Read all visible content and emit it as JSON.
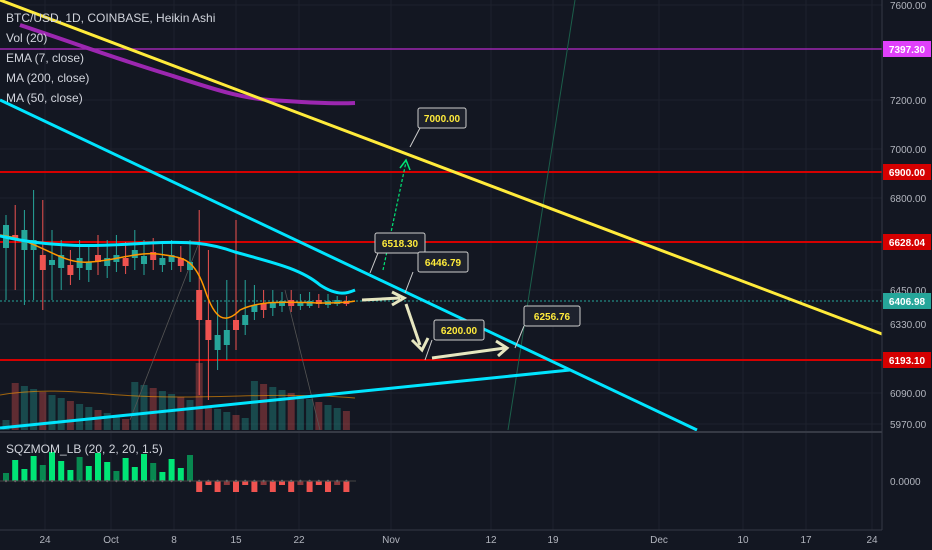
{
  "legend": {
    "symbol": "BTC/USD, 1D, COINBASE, Heikin Ashi",
    "vol": "Vol (20)",
    "ema": "EMA (7, close)",
    "ma200": "MA (200, close)",
    "ma50": "MA (50, close)"
  },
  "oscillator": {
    "label": "SQZMOM_LB (20, 2, 20, 1.5)",
    "zero_label": "0.0000"
  },
  "price_axis": [
    "7600.00",
    "7200.00",
    "7000.00",
    "6800.00",
    "6450.00",
    "6330.00",
    "6090.00",
    "5970.00"
  ],
  "price_tags": [
    {
      "text": "7397.30",
      "color": "#e040fb"
    },
    {
      "text": "6900.00",
      "color": "#d50000"
    },
    {
      "text": "6628.04",
      "color": "#d50000"
    },
    {
      "text": "6406.98",
      "color": "#26a69a"
    },
    {
      "text": "6193.10",
      "color": "#d50000"
    }
  ],
  "time_axis": [
    "24",
    "Oct",
    "8",
    "15",
    "22",
    "Nov",
    "12",
    "19",
    "Dec",
    "10",
    "17",
    "24"
  ],
  "annotations": [
    "7000.00",
    "6518.30",
    "6446.79",
    "6200.00",
    "6256.76"
  ],
  "colors": {
    "background": "#131722",
    "up": "#26a69a",
    "down": "#ef5350",
    "resistance": "#d50000",
    "yellow_trend": "#ffeb3b",
    "cyan_trend": "#00e5ff",
    "ma200": "#9c27b0"
  }
}
